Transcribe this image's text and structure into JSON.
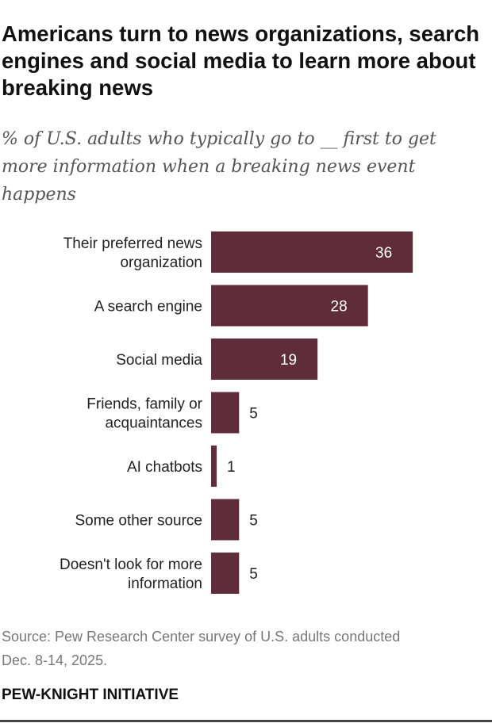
{
  "title": "Americans turn to news organizations, search engines and social media to learn more about breaking news",
  "subtitle": "% of U.S. adults who typically go to __ first to get more information when a breaking news event happens",
  "source": "Source: Pew Research Center survey of U.S. adults conducted Dec. 8-14, 2025.",
  "brand": "PEW-KNIGHT INITIATIVE",
  "colors": {
    "bar": "#5f2d3a",
    "label_inside": "#ffffff",
    "label_outside": "#222222"
  },
  "chart_data": {
    "type": "bar",
    "orientation": "horizontal",
    "categories": [
      [
        "Their preferred news",
        "organization"
      ],
      [
        "A search engine"
      ],
      [
        "Social media"
      ],
      [
        "Friends, family or",
        "acquaintances"
      ],
      [
        "AI chatbots"
      ],
      [
        "Some other source"
      ],
      [
        "Doesn't look for more",
        "information"
      ]
    ],
    "values": [
      36,
      28,
      19,
      5,
      1,
      5,
      5
    ],
    "data_labels": [
      "36",
      "28",
      "19",
      "5",
      "1",
      "5",
      "5"
    ],
    "grid": false
  }
}
